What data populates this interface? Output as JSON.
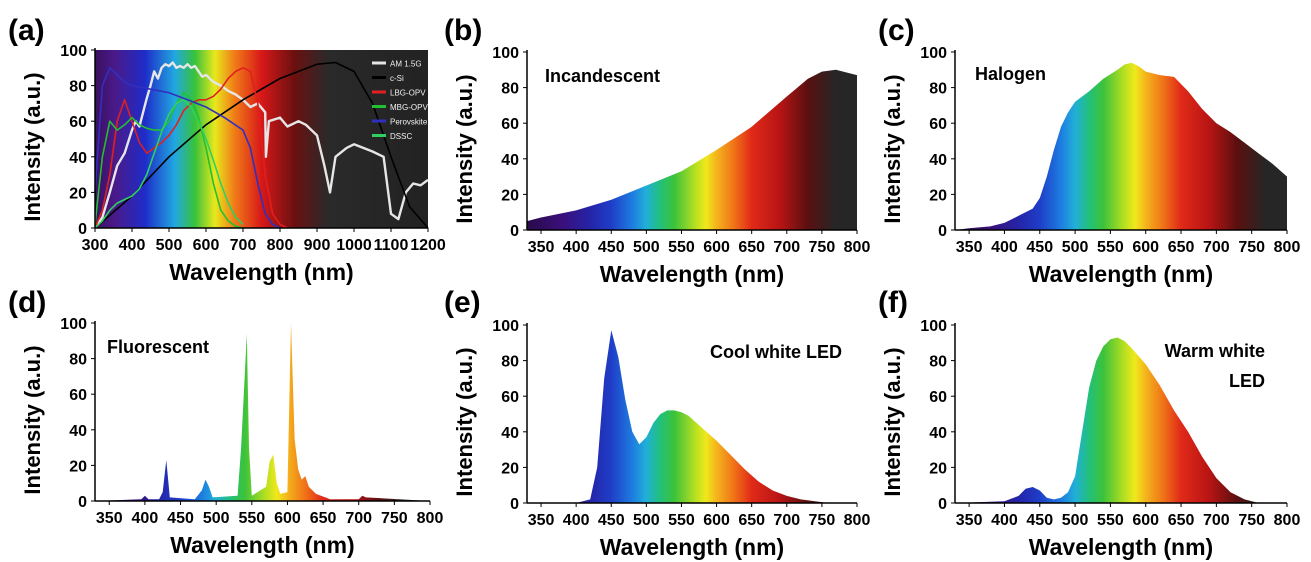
{
  "figure": {
    "panels": [
      "a",
      "b",
      "c",
      "d",
      "e",
      "f"
    ]
  },
  "chart_data": [
    {
      "panel_label": "(a)",
      "type": "line",
      "xlabel": "Wavelength (nm)",
      "ylabel": "Intensity (a.u.)",
      "xlim": [
        300,
        1200
      ],
      "ylim": [
        0,
        100
      ],
      "xticks": [
        300,
        400,
        500,
        600,
        700,
        800,
        900,
        1000,
        1100,
        1200
      ],
      "yticks": [
        0,
        20,
        40,
        60,
        80,
        100
      ],
      "background": "spectrum",
      "background_colors": [
        "#4a1a7a",
        "#1f2cc8",
        "#20a8e0",
        "#38c23a",
        "#e8e81c",
        "#f07a18",
        "#d81818",
        "#6a1010",
        "#2a2a2a"
      ],
      "legend": {
        "placement": "top-right",
        "entries": [
          "AM 1.5G",
          "c-Si",
          "LBG-OPV",
          "MBG-OPV",
          "Perovskite",
          "DSSC"
        ]
      },
      "series": [
        {
          "name": "AM 1.5G",
          "color": "#e6e6e6",
          "x": [
            300,
            320,
            340,
            360,
            380,
            400,
            410,
            420,
            430,
            440,
            450,
            460,
            470,
            480,
            490,
            500,
            510,
            520,
            530,
            540,
            550,
            560,
            570,
            580,
            590,
            600,
            620,
            640,
            660,
            680,
            700,
            720,
            740,
            760,
            762,
            770,
            800,
            820,
            850,
            870,
            900,
            920,
            935,
            950,
            980,
            1000,
            1050,
            1080,
            1100,
            1120,
            1140,
            1160,
            1180,
            1200
          ],
          "values": [
            0,
            6,
            20,
            35,
            42,
            55,
            60,
            57,
            65,
            73,
            80,
            88,
            84,
            90,
            92,
            91,
            93,
            90,
            91,
            90,
            92,
            90,
            91,
            88,
            85,
            86,
            82,
            80,
            77,
            75,
            72,
            68,
            70,
            65,
            40,
            60,
            62,
            57,
            60,
            58,
            52,
            35,
            20,
            40,
            45,
            47,
            43,
            40,
            8,
            5,
            20,
            25,
            24,
            27
          ]
        },
        {
          "name": "c-Si",
          "color": "#000000",
          "x": [
            300,
            400,
            500,
            600,
            700,
            800,
            900,
            950,
            1000,
            1050,
            1100,
            1150,
            1200
          ],
          "values": [
            0,
            18,
            40,
            58,
            72,
            84,
            92,
            93,
            88,
            70,
            40,
            12,
            0
          ]
        },
        {
          "name": "LBG-OPV",
          "color": "#e02020",
          "x": [
            300,
            320,
            340,
            360,
            380,
            400,
            420,
            440,
            460,
            480,
            500,
            520,
            540,
            560,
            580,
            600,
            620,
            640,
            660,
            680,
            700,
            720,
            740,
            760,
            780,
            800,
            820
          ],
          "values": [
            0,
            10,
            30,
            60,
            72,
            60,
            48,
            42,
            45,
            48,
            52,
            58,
            66,
            70,
            72,
            72,
            74,
            78,
            84,
            88,
            90,
            88,
            70,
            30,
            8,
            2,
            0
          ]
        },
        {
          "name": "MBG-OPV",
          "color": "#22c030",
          "x": [
            300,
            320,
            340,
            360,
            380,
            400,
            420,
            440,
            460,
            480,
            500,
            520,
            540,
            560,
            580,
            600,
            620,
            640,
            660,
            680,
            700
          ],
          "values": [
            2,
            40,
            60,
            55,
            58,
            62,
            58,
            56,
            55,
            55,
            60,
            70,
            76,
            72,
            62,
            45,
            25,
            10,
            4,
            1,
            0
          ]
        },
        {
          "name": "Perovskite",
          "color": "#3030c0",
          "x": [
            300,
            320,
            340,
            360,
            380,
            400,
            450,
            500,
            550,
            600,
            650,
            700,
            720,
            740,
            760,
            780,
            800
          ],
          "values": [
            20,
            80,
            90,
            86,
            82,
            80,
            78,
            76,
            72,
            68,
            62,
            55,
            45,
            25,
            8,
            2,
            0
          ]
        },
        {
          "name": "DSSC",
          "color": "#30d060",
          "x": [
            300,
            320,
            340,
            360,
            380,
            400,
            420,
            440,
            460,
            480,
            500,
            520,
            540,
            560,
            580,
            600,
            620,
            640,
            660,
            680,
            700
          ],
          "values": [
            0,
            4,
            10,
            14,
            16,
            18,
            22,
            30,
            42,
            54,
            64,
            70,
            72,
            68,
            60,
            50,
            38,
            25,
            14,
            6,
            2
          ]
        }
      ]
    },
    {
      "panel_label": "(b)",
      "type": "area",
      "annotation": "Incandescent",
      "xlabel": "Wavelength (nm)",
      "ylabel": "Intensity (a.u.)",
      "xlim": [
        330,
        800
      ],
      "ylim": [
        0,
        100
      ],
      "xticks": [
        350,
        400,
        450,
        500,
        550,
        600,
        650,
        700,
        750,
        800
      ],
      "yticks": [
        0,
        20,
        40,
        60,
        80,
        100
      ],
      "x": [
        330,
        350,
        400,
        450,
        500,
        550,
        600,
        650,
        700,
        730,
        750,
        770,
        790,
        800
      ],
      "values": [
        5,
        7,
        11,
        17,
        25,
        33,
        45,
        58,
        75,
        85,
        89,
        90,
        88,
        87
      ]
    },
    {
      "panel_label": "(c)",
      "type": "area",
      "annotation": "Halogen",
      "xlabel": "Wavelength (nm)",
      "ylabel": "Intensity (a.u.)",
      "xlim": [
        330,
        800
      ],
      "ylim": [
        0,
        100
      ],
      "xticks": [
        350,
        400,
        450,
        500,
        550,
        600,
        650,
        700,
        750,
        800
      ],
      "yticks": [
        0,
        20,
        40,
        60,
        80,
        100
      ],
      "x": [
        330,
        350,
        380,
        400,
        420,
        440,
        450,
        460,
        470,
        480,
        490,
        500,
        520,
        540,
        560,
        570,
        580,
        590,
        600,
        620,
        640,
        660,
        680,
        700,
        720,
        740,
        760,
        780,
        800
      ],
      "values": [
        0,
        1,
        2,
        4,
        8,
        12,
        18,
        30,
        45,
        58,
        66,
        72,
        78,
        85,
        90,
        93,
        94,
        92,
        89,
        87,
        86,
        78,
        68,
        60,
        55,
        49,
        43,
        37,
        30
      ]
    },
    {
      "panel_label": "(d)",
      "type": "area",
      "annotation": "Fluorescent",
      "xlabel": "Wavelength (nm)",
      "ylabel": "Intensity (a.u.)",
      "xlim": [
        330,
        800
      ],
      "ylim": [
        0,
        100
      ],
      "xticks": [
        350,
        400,
        450,
        500,
        550,
        600,
        650,
        700,
        750,
        800
      ],
      "yticks": [
        0,
        20,
        40,
        60,
        80,
        100
      ],
      "x": [
        330,
        395,
        400,
        405,
        420,
        425,
        430,
        435,
        470,
        480,
        485,
        490,
        495,
        530,
        535,
        540,
        543,
        546,
        550,
        570,
        575,
        580,
        585,
        590,
        600,
        605,
        610,
        615,
        620,
        625,
        630,
        640,
        660,
        700,
        705,
        710,
        800
      ],
      "values": [
        0,
        1,
        3,
        1,
        1,
        5,
        23,
        2,
        1,
        6,
        12,
        8,
        2,
        3,
        30,
        70,
        94,
        30,
        3,
        8,
        22,
        26,
        10,
        4,
        5,
        100,
        35,
        18,
        12,
        14,
        8,
        4,
        1,
        1,
        3,
        2,
        0
      ]
    },
    {
      "panel_label": "(e)",
      "type": "area",
      "annotation": "Cool white LED",
      "xlabel": "Wavelength (nm)",
      "ylabel": "Intensity (a.u.)",
      "xlim": [
        330,
        800
      ],
      "ylim": [
        0,
        100
      ],
      "xticks": [
        350,
        400,
        450,
        500,
        550,
        600,
        650,
        700,
        750,
        800
      ],
      "yticks": [
        0,
        20,
        40,
        60,
        80,
        100
      ],
      "x": [
        330,
        400,
        420,
        430,
        440,
        450,
        460,
        470,
        480,
        490,
        500,
        510,
        520,
        530,
        540,
        550,
        560,
        580,
        600,
        620,
        640,
        660,
        680,
        700,
        720,
        740,
        760,
        800
      ],
      "values": [
        0,
        0,
        2,
        20,
        70,
        97,
        82,
        58,
        40,
        33,
        37,
        45,
        50,
        52,
        52,
        51,
        49,
        42,
        35,
        27,
        19,
        12,
        7,
        4,
        2,
        1,
        0,
        0
      ]
    },
    {
      "panel_label": "(f)",
      "type": "area",
      "annotation": "Warm white LED",
      "xlabel": "Wavelength (nm)",
      "ylabel": "Intensity (a.u.)",
      "xlim": [
        330,
        800
      ],
      "ylim": [
        0,
        100
      ],
      "xticks": [
        350,
        400,
        450,
        500,
        550,
        600,
        650,
        700,
        750,
        800
      ],
      "yticks": [
        0,
        20,
        40,
        60,
        80,
        100
      ],
      "x": [
        330,
        400,
        420,
        430,
        440,
        450,
        460,
        470,
        480,
        490,
        500,
        510,
        520,
        530,
        540,
        550,
        560,
        570,
        580,
        600,
        620,
        640,
        660,
        680,
        700,
        720,
        740,
        760,
        800
      ],
      "values": [
        0,
        1,
        4,
        8,
        9,
        7,
        3,
        2,
        3,
        6,
        15,
        40,
        65,
        80,
        88,
        92,
        93,
        91,
        87,
        78,
        66,
        52,
        40,
        26,
        14,
        6,
        2,
        0,
        0
      ]
    }
  ]
}
